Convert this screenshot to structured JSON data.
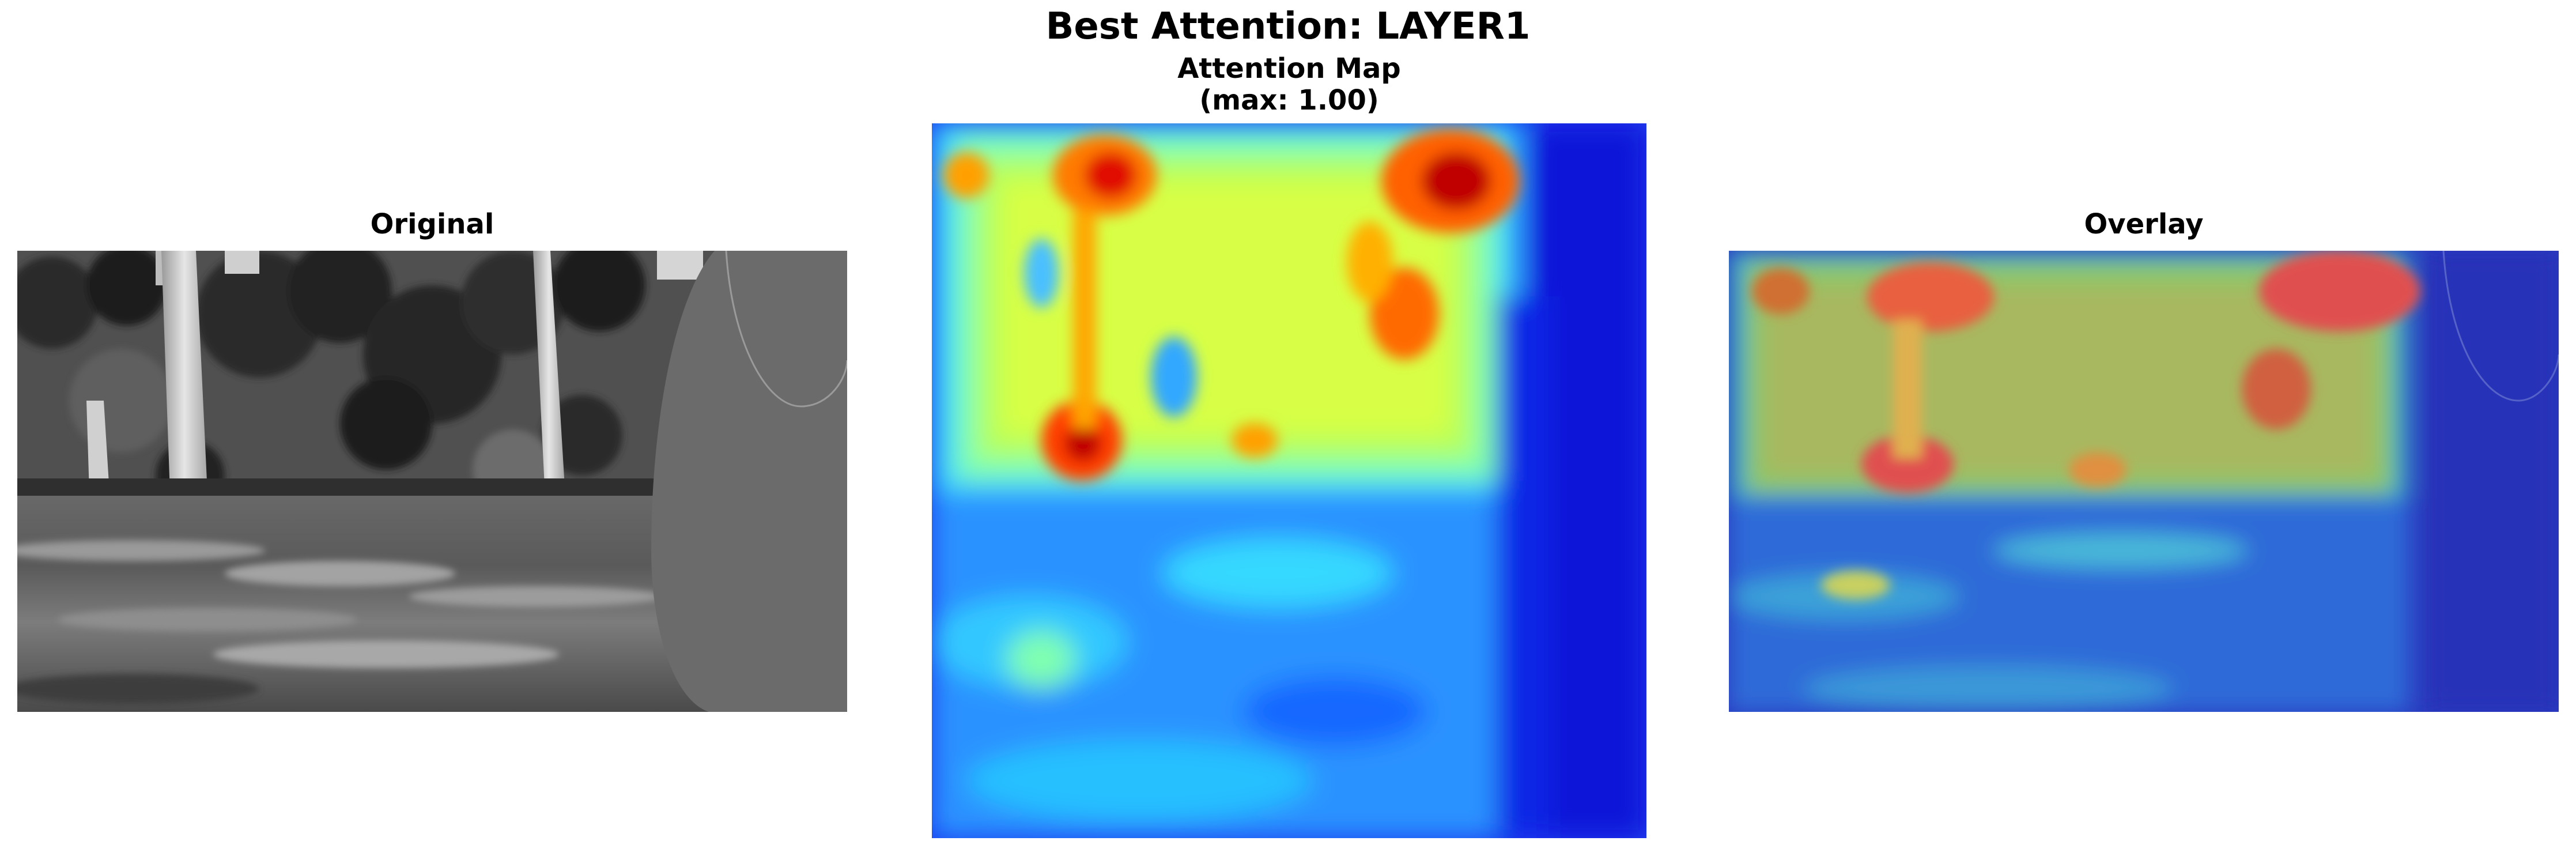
{
  "figure": {
    "title": "Best Attention: LAYER1"
  },
  "panels": {
    "original": {
      "title": "Original",
      "image": "grayscale-forest-path-photo"
    },
    "attention": {
      "title_line1": "Attention Map",
      "title_line2": "(max: 1.00)",
      "colormap": "jet",
      "image": "attention-heatmap"
    },
    "overlay": {
      "title": "Overlay",
      "image": "heatmap-overlaid-on-photo"
    }
  }
}
